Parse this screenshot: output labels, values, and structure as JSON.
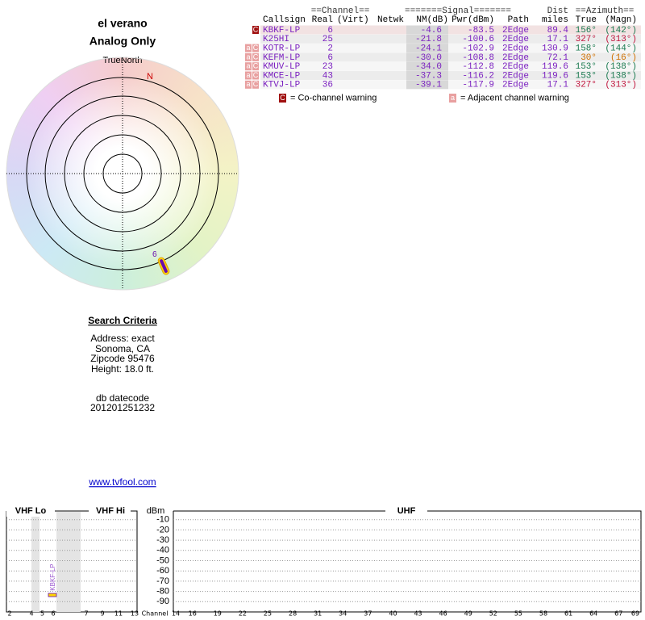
{
  "header": {
    "title": "el verano",
    "subtitle": "Analog Only"
  },
  "polar": {
    "north_label": "TrueNorth",
    "n_label": "N"
  },
  "table": {
    "group_headers": [
      "==Channel==",
      "=======Signal=======",
      "Dist",
      "==Azimuth=="
    ],
    "columns": [
      "Callsign",
      "Real",
      "(Virt)",
      "Netwk",
      "NM(dB)",
      "Pwr(dBm)",
      "Path",
      "miles",
      "True",
      "(Magn)"
    ],
    "rows": [
      {
        "flags": [
          "C"
        ],
        "callsign": "KBKF-LP",
        "real": 6,
        "nm": -4.6,
        "pwr": -83.5,
        "path": "2Edge",
        "dist": 89.4,
        "true": {
          "value": 156,
          "label": "156°"
        },
        "magn": {
          "value": 142,
          "label": "(142°)"
        },
        "color": "#1a7a50"
      },
      {
        "callsign": "K25HI",
        "real": 25,
        "nm": -21.8,
        "pwr": -100.6,
        "path": "2Edge",
        "dist": 17.1,
        "true": {
          "value": 327,
          "label": "327°"
        },
        "magn": {
          "value": 313,
          "label": "(313°)"
        },
        "color": "#c0143c"
      },
      {
        "flags": [
          "a",
          "C"
        ],
        "callsign": "KOTR-LP",
        "real": 2,
        "nm": -24.1,
        "pwr": -102.9,
        "path": "2Edge",
        "dist": 130.9,
        "true": {
          "value": 158,
          "label": "158°"
        },
        "magn": {
          "value": 144,
          "label": "(144°)"
        },
        "color": "#1a7a50"
      },
      {
        "flags": [
          "a",
          "C"
        ],
        "callsign": "KEFM-LP",
        "real": 6,
        "nm": {
          "value": -30,
          "label": "-30.0"
        },
        "pwr": -108.8,
        "path": "2Edge",
        "dist": 72.1,
        "true": {
          "value": 30,
          "label": "30°"
        },
        "magn": {
          "value": 16,
          "label": "(16°)"
        },
        "color": "#d07000"
      },
      {
        "flags": [
          "a",
          "C"
        ],
        "callsign": "KMUV-LP",
        "real": 23,
        "nm": {
          "value": -34,
          "label": "-34.0"
        },
        "pwr": -112.8,
        "path": "2Edge",
        "dist": 119.6,
        "true": {
          "value": 153,
          "label": "153°"
        },
        "magn": {
          "value": 138,
          "label": "(138°)"
        },
        "color": "#1a7a50"
      },
      {
        "flags": [
          "a",
          "C"
        ],
        "callsign": "KMCE-LP",
        "real": 43,
        "nm": -37.3,
        "pwr": -116.2,
        "path": "2Edge",
        "dist": 119.6,
        "true": {
          "value": 153,
          "label": "153°"
        },
        "magn": {
          "value": 138,
          "label": "(138°)"
        },
        "color": "#1a7a50"
      },
      {
        "flags": [
          "a",
          "C"
        ],
        "callsign": "KTVJ-LP",
        "real": 36,
        "nm": -39.1,
        "pwr": -117.9,
        "path": "2Edge",
        "dist": 17.1,
        "true": {
          "value": 327,
          "label": "327°"
        },
        "magn": {
          "value": 313,
          "label": "(313°)"
        },
        "color": "#c0143c"
      }
    ]
  },
  "legend": {
    "co_icon": "C",
    "co_text": "= Co-channel warning",
    "adj_icon": "a",
    "adj_text": "= Adjacent channel warning"
  },
  "criteria": {
    "title": "Search Criteria",
    "lines": [
      "Address: exact",
      "Sonoma, CA",
      "Zipcode 95476",
      "Height: 18.0 ft."
    ],
    "datecode_label": "db datecode",
    "datecode": "201201251232",
    "link": "www.tvfool.com"
  },
  "spectrum": {
    "vhf_lo_label": "VHF Lo",
    "vhf_hi_label": "VHF Hi",
    "uhf_label": "UHF",
    "ylabel": "dBm",
    "xlabel": "Channel",
    "ylim": [
      0,
      -100
    ],
    "yticks": [
      -10,
      -20,
      -30,
      -40,
      -50,
      -60,
      -70,
      -80,
      -90
    ],
    "vhf_lo_channels": [
      2,
      4,
      5,
      6
    ],
    "vhf_hi_channels": [
      7,
      9,
      11,
      13
    ],
    "uhf_channels": [
      14,
      16,
      19,
      22,
      25,
      28,
      31,
      34,
      37,
      40,
      43,
      46,
      49,
      52,
      55,
      58,
      61,
      64,
      67,
      69
    ]
  }
}
